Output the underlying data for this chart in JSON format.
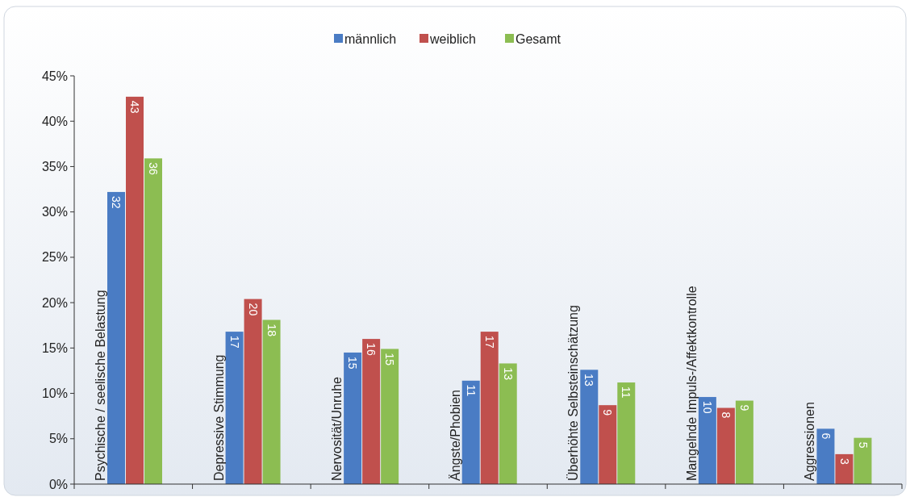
{
  "chart_data": {
    "type": "bar",
    "categories": [
      "Psychische / seelische Belastung",
      "Depressive Stimmung",
      "Nervosität/Unruhe",
      "Ängste/Phobien",
      "Überhöhte Selbsteinschätzung",
      "Mangelnde Impuls-/Affektkontrolle",
      "Aggressionen"
    ],
    "series": [
      {
        "name": "männlich",
        "color": "#4a7cc4",
        "values": [
          32.2,
          16.8,
          14.5,
          11.4,
          12.6,
          9.6,
          6.1
        ],
        "value_labels": [
          "32",
          "17",
          "15",
          "11",
          "13",
          "10",
          "6"
        ]
      },
      {
        "name": "weiblich",
        "color": "#c0504d",
        "values": [
          42.7,
          20.4,
          16.0,
          16.8,
          8.7,
          8.4,
          3.3
        ],
        "value_labels": [
          "43",
          "20",
          "16",
          "17",
          "9",
          "8",
          "3"
        ]
      },
      {
        "name": "Gesamt",
        "color": "#8cbd52",
        "values": [
          35.9,
          18.1,
          14.9,
          13.3,
          11.2,
          9.2,
          5.1
        ],
        "value_labels": [
          "36",
          "18",
          "15",
          "13",
          "11",
          "9",
          "5"
        ]
      }
    ],
    "ylim": [
      0,
      45
    ],
    "yticks": [
      {
        "value": 0,
        "label": "0%"
      },
      {
        "value": 5,
        "label": "5%"
      },
      {
        "value": 10,
        "label": "10%"
      },
      {
        "value": 15,
        "label": "15%"
      },
      {
        "value": 20,
        "label": "20%"
      },
      {
        "value": 25,
        "label": "25%"
      },
      {
        "value": 30,
        "label": "30%"
      },
      {
        "value": 35,
        "label": "35%"
      },
      {
        "value": 40,
        "label": "40%"
      },
      {
        "value": 45,
        "label": "45%"
      }
    ],
    "legend": "top",
    "grid": false
  }
}
